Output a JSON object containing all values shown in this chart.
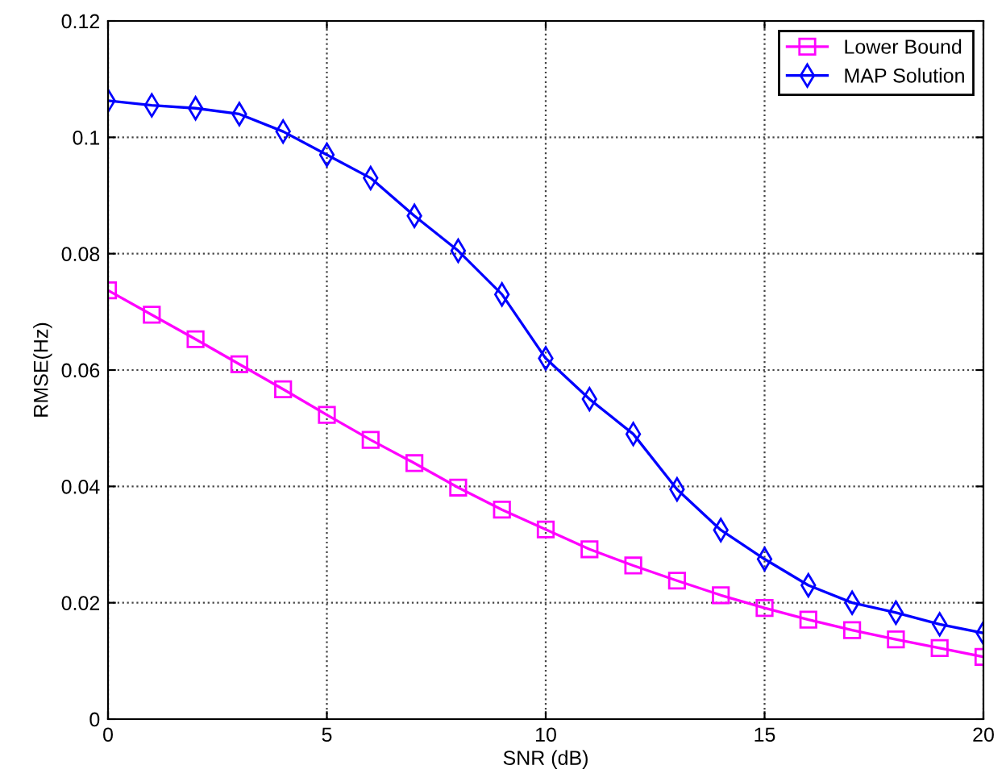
{
  "chart_data": {
    "type": "line",
    "xlabel": "SNR (dB)",
    "ylabel": "RMSE(Hz)",
    "x": [
      0,
      1,
      2,
      3,
      4,
      5,
      6,
      7,
      8,
      9,
      10,
      11,
      12,
      13,
      14,
      15,
      16,
      17,
      18,
      19,
      20
    ],
    "series": [
      {
        "name": "Lower Bound",
        "color": "#ff00ff",
        "marker": "square",
        "values": [
          0.0737,
          0.0695,
          0.0653,
          0.061,
          0.0567,
          0.0523,
          0.048,
          0.044,
          0.0398,
          0.036,
          0.0326,
          0.0292,
          0.0264,
          0.0238,
          0.0213,
          0.0191,
          0.0171,
          0.0153,
          0.0137,
          0.0122,
          0.0107
        ]
      },
      {
        "name": "MAP Solution",
        "color": "#0000ff",
        "marker": "diamond",
        "values": [
          0.1063,
          0.1055,
          0.105,
          0.104,
          0.101,
          0.097,
          0.093,
          0.0865,
          0.0805,
          0.073,
          0.062,
          0.055,
          0.049,
          0.0395,
          0.0325,
          0.0275,
          0.023,
          0.02,
          0.0183,
          0.0163,
          0.0148
        ]
      }
    ],
    "xlim": [
      0,
      20
    ],
    "xticks": [
      0,
      5,
      10,
      15,
      20
    ],
    "ylim": [
      0,
      0.12
    ],
    "yticks": [
      0,
      0.02,
      0.04,
      0.06,
      0.08,
      0.1,
      0.12
    ],
    "grid": true,
    "legend": "top right",
    "line_style": "solid"
  }
}
